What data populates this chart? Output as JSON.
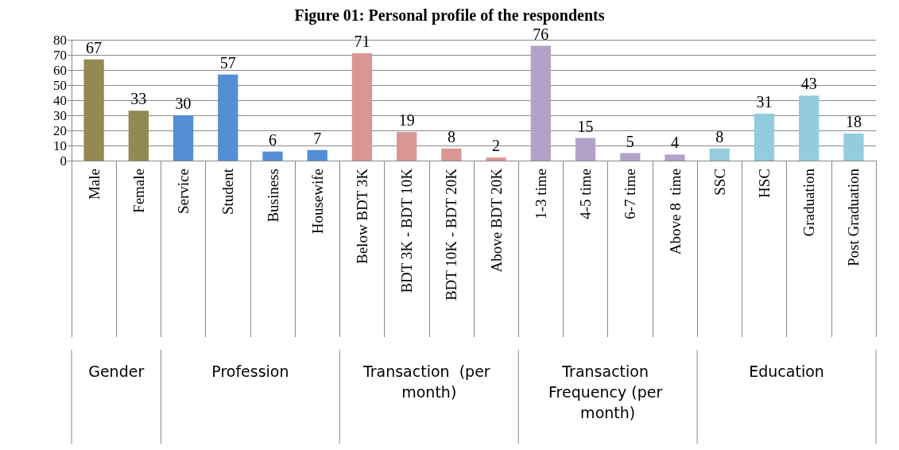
{
  "chart_data": {
    "type": "bar",
    "title": "Figure 01: Personal profile of the respondents",
    "categories": [
      "Male",
      "Female",
      "Service",
      "Student",
      "Business",
      "Housewife",
      "Below BDT 3K",
      "BDT 3K - BDT 10K",
      "BDT 10K - BDT 20K",
      "Above BDT 20K",
      "1-3 time",
      "4-5 time",
      "6-7 time",
      "Above 8  time",
      "SSC",
      "HSC",
      "Graduation",
      "Post Graduation"
    ],
    "values": [
      67,
      33,
      30,
      57,
      6,
      7,
      71,
      19,
      8,
      2,
      76,
      15,
      5,
      4,
      8,
      31,
      43,
      18
    ],
    "colors": [
      "#938953",
      "#938953",
      "#558ed5",
      "#558ed5",
      "#558ed5",
      "#558ed5",
      "#d99694",
      "#d99694",
      "#d99694",
      "#d99694",
      "#b3a2c7",
      "#b3a2c7",
      "#b3a2c7",
      "#b3a2c7",
      "#93cddd",
      "#93cddd",
      "#93cddd",
      "#93cddd"
    ],
    "ylim": [
      0,
      80
    ],
    "yticks": [
      0,
      10,
      20,
      30,
      40,
      50,
      60,
      70,
      80
    ],
    "grid": "y",
    "data_labels": true,
    "annotations": [
      "Gender",
      "Profession",
      "Transaction  (per month)",
      "Transaction Frequency (per month)",
      "Education"
    ]
  }
}
